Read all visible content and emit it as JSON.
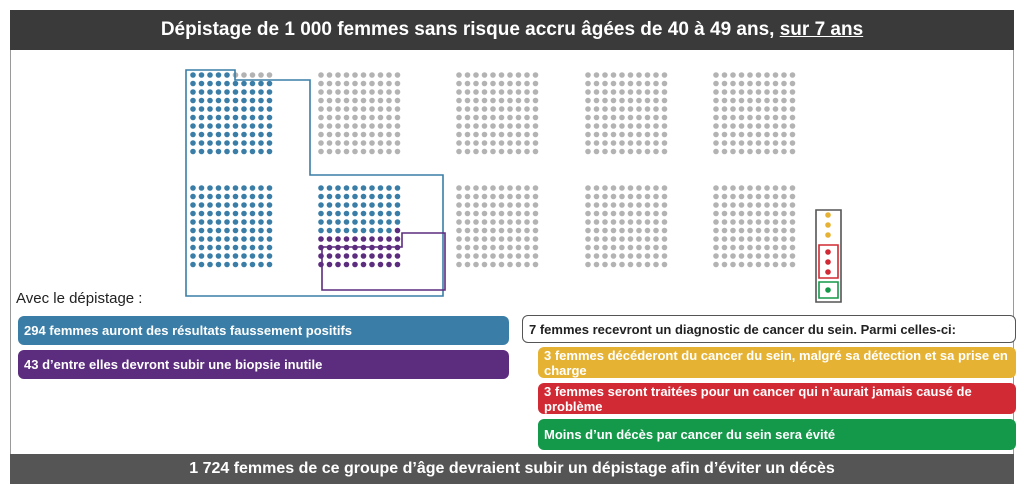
{
  "header": {
    "title_main": "Dépistage de 1 000 femmes sans risque accru âgées de 40 à 49 ans, ",
    "title_emphasis": "sur 7 ans"
  },
  "footer": {
    "text": "1 724 femmes de ce groupe d’âge devraient subir un dépistage afin d’éviter un décès"
  },
  "section_label": "Avec le dépistage :",
  "left_bars": {
    "false_positive": "294 femmes auront des résultats faussement positifs",
    "biopsy": "43 d’entre elles devront subir une biopsie inutile"
  },
  "right_bars": {
    "diagnosis": "7 femmes recevront un diagnostic de cancer du sein. Parmi celles-ci:",
    "deaths": "3 femmes décéderont du cancer du sein, malgré sa détection et sa prise en charge",
    "overtreated": "3 femmes seront traitées pour un cancer qui n’aurait jamais causé de problème",
    "avoided": "Moins d’un décès par cancer du sein sera évité"
  },
  "colors": {
    "blue": "#3a7ea7",
    "purple": "#5c2c7e",
    "gray": "#b3b3b3",
    "yellow": "#e6b234",
    "red": "#d12a34",
    "green": "#14994a",
    "header_bg": "#3a3a3a",
    "footer_bg": "#555555"
  },
  "counts": {
    "total": 1000,
    "false_positive": 294,
    "unnecessary_biopsy": 43,
    "diagnosed": 7,
    "deaths_despite_detection": 3,
    "overdiagnosed": 3,
    "deaths_avoided": "<1"
  }
}
